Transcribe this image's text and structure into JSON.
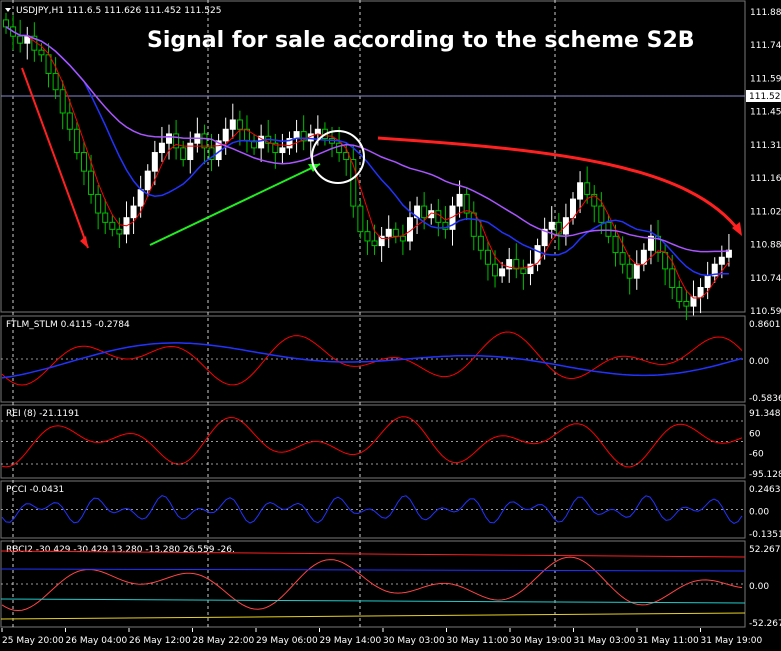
{
  "chart_data": {
    "type": "candlestick",
    "symbol_header": "USDJPY,H1  111.6.5 111.626 111.452 111.525",
    "annotation": "Signal for sale according to the scheme S2B",
    "current_price": "111.525",
    "price_ticks": [
      "111.884",
      "111.744",
      "111.599",
      "111.459",
      "111.314",
      "111.169",
      "111.029",
      "110.884",
      "110.744",
      "110.599"
    ],
    "time_ticks": [
      "25 May 20:00",
      "26 May 04:00",
      "26 May 12:00",
      "28 May 22:00",
      "29 May 06:00",
      "29 May 14:00",
      "30 May 03:00",
      "30 May 11:00",
      "30 May 19:00",
      "31 May 03:00",
      "31 May 11:00",
      "31 May 19:00"
    ],
    "closes": [
      111.82,
      111.78,
      111.75,
      111.78,
      111.72,
      111.7,
      111.62,
      111.55,
      111.45,
      111.38,
      111.28,
      111.2,
      111.1,
      111.02,
      110.98,
      110.95,
      110.93,
      111.0,
      111.05,
      111.12,
      111.2,
      111.28,
      111.32,
      111.36,
      111.3,
      111.25,
      111.32,
      111.36,
      111.3,
      111.25,
      111.33,
      111.38,
      111.42,
      111.38,
      111.33,
      111.3,
      111.35,
      111.32,
      111.28,
      111.3,
      111.34,
      111.37,
      111.33,
      111.36,
      111.38,
      111.34,
      111.32,
      111.28,
      111.25,
      111.05,
      110.94,
      110.9,
      110.88,
      110.92,
      110.95,
      110.92,
      110.9,
      111.0,
      111.05,
      111.0,
      111.03,
      110.98,
      110.95,
      111.05,
      111.1,
      111.02,
      110.92,
      110.86,
      110.8,
      110.75,
      110.78,
      110.82,
      110.78,
      110.76,
      110.8,
      110.88,
      110.95,
      110.98,
      110.93,
      111.0,
      111.08,
      111.15,
      111.1,
      111.05,
      110.98,
      110.92,
      110.85,
      110.8,
      110.74,
      110.8,
      110.86,
      110.92,
      110.85,
      110.78,
      110.7,
      110.64,
      110.62,
      110.66,
      110.7,
      110.75,
      110.8,
      110.83,
      110.86
    ],
    "price_range": [
      110.599,
      111.884
    ],
    "indicators": [
      {
        "header": "FTLM_STLM 0.4115 -0.2784",
        "ticks": [
          "0.8601",
          "0.00",
          "-0.5836"
        ]
      },
      {
        "header": "REI (8) -21.1191",
        "ticks": [
          "91.348",
          "60",
          "-60",
          "-95.128"
        ]
      },
      {
        "header": "PCCI -0.0431",
        "ticks": [
          "0.2463",
          "0.00",
          "-0.1351"
        ]
      },
      {
        "header": "RBCI2 -30.429 -30.429 13.280 -13.280 26.559 -26.",
        "ticks": [
          "52.267",
          "0.00",
          "-52.267"
        ]
      }
    ]
  },
  "colors": {
    "bg": "#000000",
    "bull": "#ffffff",
    "bear": "#00c000",
    "red": "#ff0000",
    "blue": "#0000ff",
    "purple": "#aa55ff",
    "green": "#22ee22",
    "grid": "#ffffff"
  }
}
